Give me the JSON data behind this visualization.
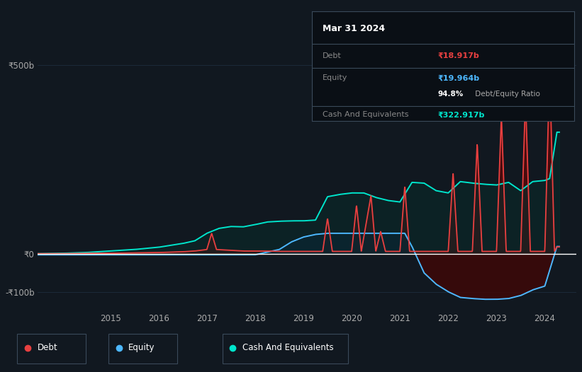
{
  "background_color": "#111820",
  "plot_bg_color": "#111820",
  "grid_color": "#1e2d3d",
  "zero_line_color": "#ffffff",
  "title_box": {
    "date": "Mar 31 2024",
    "debt_label": "Debt",
    "debt_value": "₹18.917b",
    "equity_label": "Equity",
    "equity_value": "₹19.964b",
    "ratio_text": "94.8%",
    "ratio_suffix": " Debt/Equity Ratio",
    "cash_label": "Cash And Equivalents",
    "cash_value": "₹322.917b",
    "box_bg": "#0a0f15",
    "box_border": "#3a4a5a",
    "debt_color": "#e84040",
    "equity_color": "#4db8ff",
    "cash_color": "#00e5cc",
    "ratio_bold_color": "#ffffff",
    "ratio_normal_color": "#aaaaaa",
    "label_color": "#888888",
    "title_color": "#ffffff"
  },
  "ylim": [
    -150,
    560
  ],
  "yticks": [
    -100,
    0,
    500
  ],
  "ytick_labels": [
    "-₹100b",
    "₹0",
    "₹500b"
  ],
  "xlim_start": 2013.5,
  "xlim_end": 2024.65,
  "xtick_years": [
    2015,
    2016,
    2017,
    2018,
    2019,
    2020,
    2021,
    2022,
    2023,
    2024
  ],
  "debt_color": "#e84040",
  "equity_color": "#4db8ff",
  "cash_color": "#00e5cc",
  "debt_fill_color": "#5a0808",
  "equity_neg_fill_color": "#3d0808",
  "equity_pos_fill_color": "#0a2040",
  "cash_fill_color": "#0a2a2a",
  "legend_bg": "#0f1820",
  "legend_border": "#2a3a4a"
}
